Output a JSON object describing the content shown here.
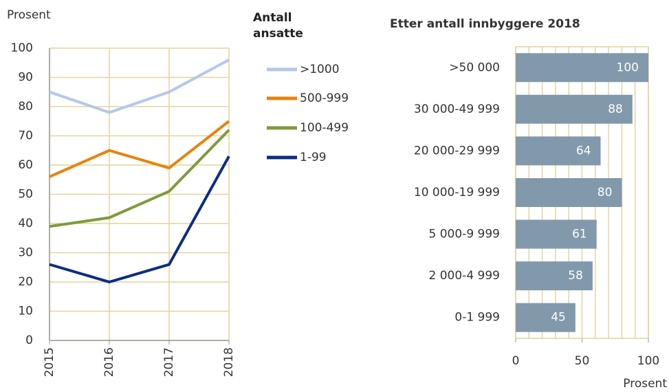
{
  "chart_data": [
    {
      "type": "line",
      "y_label": "Prosent",
      "legend_title": "Antall ansatte",
      "x": [
        2015,
        2016,
        2017,
        2018
      ],
      "xlim": [
        2015,
        2018
      ],
      "ylim": [
        0,
        100
      ],
      "yticks": [
        0,
        10,
        20,
        30,
        40,
        50,
        60,
        70,
        80,
        90,
        100
      ],
      "grid": true,
      "series": [
        {
          "name": ">1000",
          "color": "#b4c8ec",
          "values": [
            85,
            78,
            85,
            96
          ]
        },
        {
          "name": "500-999",
          "color": "#e8830c",
          "values": [
            56,
            65,
            59,
            75
          ]
        },
        {
          "name": "100-499",
          "color": "#7f9a3c",
          "values": [
            39,
            42,
            51,
            72
          ]
        },
        {
          "name": "1-99",
          "color": "#0c2d83",
          "values": [
            26,
            20,
            26,
            63
          ]
        }
      ]
    },
    {
      "type": "hbar",
      "title": "Etter antall innbyggere 2018",
      "x_label": "Prosent",
      "categories": [
        ">50 000",
        "30 000-49 999",
        "20 000-29 999",
        "10 000-19 999",
        "5 000-9 999",
        "2 000-4 999",
        "0-1 999"
      ],
      "values": [
        100,
        88,
        64,
        80,
        61,
        58,
        45
      ],
      "color": "#8199ab",
      "xlim": [
        0,
        100
      ],
      "xticks": [
        0,
        50,
        100
      ],
      "minor_xticks": [
        0,
        10,
        20,
        30,
        40,
        50,
        60,
        70,
        80,
        90,
        100
      ]
    }
  ]
}
